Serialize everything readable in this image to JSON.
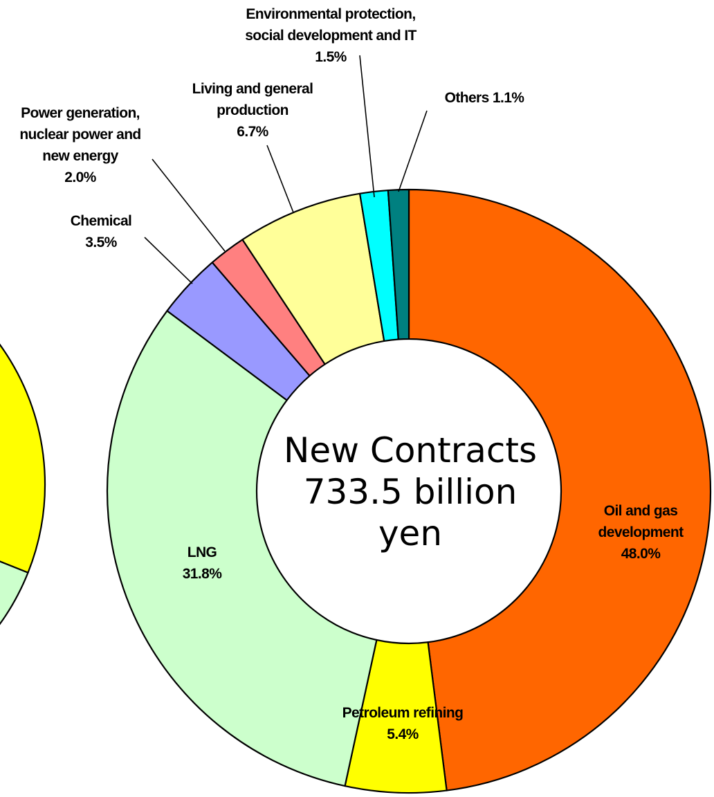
{
  "chart_data": [
    {
      "type": "donut",
      "center_label": [
        "New Contracts",
        "733.5 billion",
        "yen"
      ],
      "series": [
        {
          "name": "Oil and gas development",
          "value": 48.0,
          "value_label": "48.0%",
          "color": "#FF6600",
          "label_lines": [
            "Oil and gas",
            "development",
            "48.0%"
          ]
        },
        {
          "name": "Petroleum refining",
          "value": 5.4,
          "value_label": "5.4%",
          "color": "#FFFF00",
          "label_lines": [
            "Petroleum refining",
            "5.4%"
          ]
        },
        {
          "name": "LNG",
          "value": 31.8,
          "value_label": "31.8%",
          "color": "#CCFFCC",
          "label_lines": [
            "LNG",
            "31.8%"
          ]
        },
        {
          "name": "Chemical",
          "value": 3.5,
          "value_label": "3.5%",
          "color": "#9999FF",
          "label_lines": [
            "Chemical",
            "3.5%"
          ]
        },
        {
          "name": "Power generation, nuclear power and new energy",
          "value": 2.0,
          "value_label": "2.0%",
          "color": "#FF8080",
          "label_lines": [
            "Power generation,",
            "nuclear power and",
            "new energy",
            "2.0%"
          ]
        },
        {
          "name": "Living and general production",
          "value": 6.7,
          "value_label": "6.7%",
          "color": "#FFFF99",
          "label_lines": [
            "Living and general",
            "production",
            "6.7%"
          ]
        },
        {
          "name": "Environmental protection, social development and IT",
          "value": 1.5,
          "value_label": "1.5%",
          "color": "#00FFFF",
          "label_lines": [
            "Environmental protection,",
            "social development and IT",
            "1.5%"
          ]
        },
        {
          "name": "Others",
          "value": 1.1,
          "value_label": "1.1%",
          "color": "#008080",
          "label_lines": [
            "Others   1.1%"
          ]
        }
      ]
    },
    {
      "type": "donut",
      "partially_visible": true,
      "series": [
        {
          "color": "#FFFF00"
        },
        {
          "color": "#CCFFCC"
        }
      ]
    }
  ]
}
